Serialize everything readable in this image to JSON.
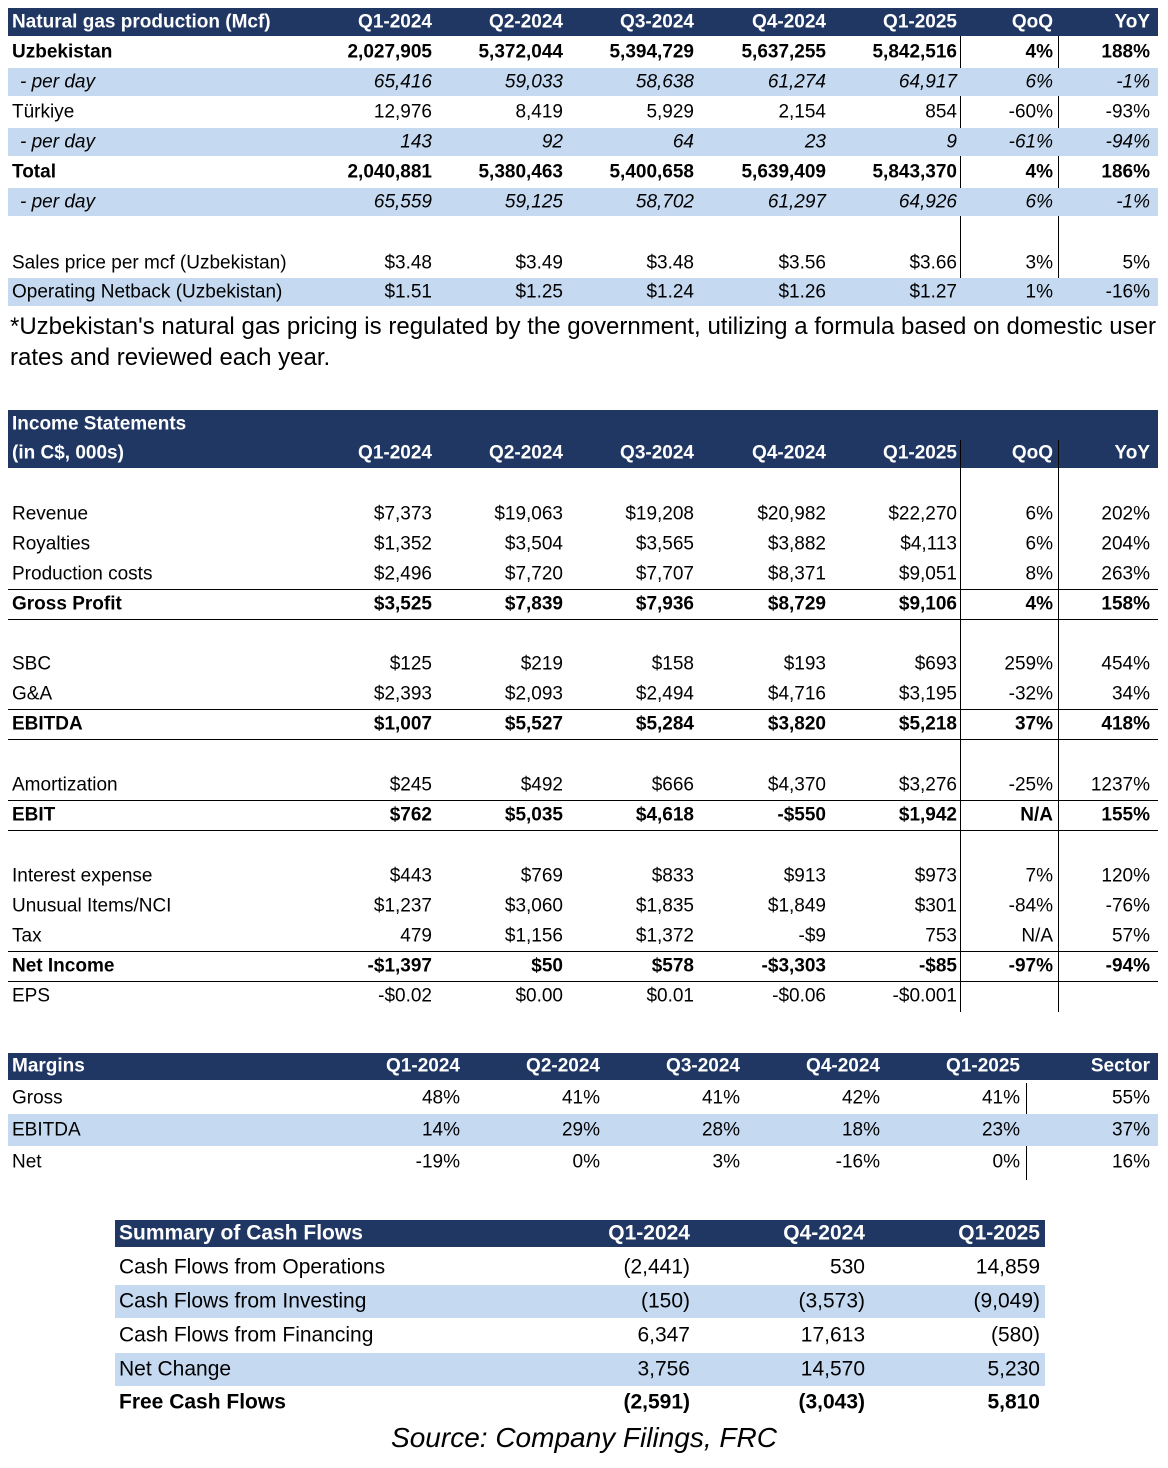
{
  "gas_production": {
    "header": [
      "Natural gas production (Mcf)",
      "Q1-2024",
      "Q2-2024",
      "Q3-2024",
      "Q4-2024",
      "Q1-2025",
      "QoQ",
      "YoY"
    ],
    "rows": [
      [
        "Uzbekistan",
        "2,027,905",
        "5,372,044",
        "5,394,729",
        "5,637,255",
        "5,842,516",
        "4%",
        "188%"
      ],
      [
        "- per day",
        "65,416",
        "59,033",
        "58,638",
        "61,274",
        "64,917",
        "6%",
        "-1%"
      ],
      [
        "Türkiye",
        "12,976",
        "8,419",
        "5,929",
        "2,154",
        "854",
        "-60%",
        "-93%"
      ],
      [
        "- per day",
        "143",
        "92",
        "64",
        "23",
        "9",
        "-61%",
        "-94%"
      ],
      [
        "Total",
        "2,040,881",
        "5,380,463",
        "5,400,658",
        "5,639,409",
        "5,843,370",
        "4%",
        "186%"
      ],
      [
        "- per day",
        "65,559",
        "59,125",
        "58,702",
        "61,297",
        "64,926",
        "6%",
        "-1%"
      ],
      [
        "Sales price per mcf (Uzbekistan)",
        "$3.48",
        "$3.49",
        "$3.48",
        "$3.56",
        "$3.66",
        "3%",
        "5%"
      ],
      [
        "Operating Netback (Uzbekistan)",
        "$1.51",
        "$1.25",
        "$1.24",
        "$1.26",
        "$1.27",
        "1%",
        "-16%"
      ]
    ]
  },
  "footnote": "*Uzbekistan's natural gas pricing is regulated by the government, utilizing a formula based on domestic user rates and reviewed each year.",
  "income_statement": {
    "title": "Income Statements",
    "header": [
      "(in C$, 000s)",
      "Q1-2024",
      "Q2-2024",
      "Q3-2024",
      "Q4-2024",
      "Q1-2025",
      "QoQ",
      "YoY"
    ],
    "rows": [
      [
        "Revenue",
        "$7,373",
        "$19,063",
        "$19,208",
        "$20,982",
        "$22,270",
        "6%",
        "202%"
      ],
      [
        "Royalties",
        "$1,352",
        "$3,504",
        "$3,565",
        "$3,882",
        "$4,113",
        "6%",
        "204%"
      ],
      [
        "Production costs",
        "$2,496",
        "$7,720",
        "$7,707",
        "$8,371",
        "$9,051",
        "8%",
        "263%"
      ],
      [
        "Gross Profit",
        "$3,525",
        "$7,839",
        "$7,936",
        "$8,729",
        "$9,106",
        "4%",
        "158%"
      ],
      [
        "SBC",
        "$125",
        "$219",
        "$158",
        "$193",
        "$693",
        "259%",
        "454%"
      ],
      [
        "G&A",
        "$2,393",
        "$2,093",
        "$2,494",
        "$4,716",
        "$3,195",
        "-32%",
        "34%"
      ],
      [
        "EBITDA",
        "$1,007",
        "$5,527",
        "$5,284",
        "$3,820",
        "$5,218",
        "37%",
        "418%"
      ],
      [
        "Amortization",
        "$245",
        "$492",
        "$666",
        "$4,370",
        "$3,276",
        "-25%",
        "1237%"
      ],
      [
        "EBIT",
        "$762",
        "$5,035",
        "$4,618",
        "-$550",
        "$1,942",
        "N/A",
        "155%"
      ],
      [
        "Interest expense",
        "$443",
        "$769",
        "$833",
        "$913",
        "$973",
        "7%",
        "120%"
      ],
      [
        "Unusual Items/NCI",
        "$1,237",
        "$3,060",
        "$1,835",
        "$1,849",
        "$301",
        "-84%",
        "-76%"
      ],
      [
        "Tax",
        "479",
        "$1,156",
        "$1,372",
        "-$9",
        "753",
        "N/A",
        "57%"
      ],
      [
        "Net Income",
        "-$1,397",
        "$50",
        "$578",
        "-$3,303",
        "-$85",
        "-97%",
        "-94%"
      ],
      [
        "EPS",
        "-$0.02",
        "$0.00",
        "$0.01",
        "-$0.06",
        "-$0.001"
      ]
    ]
  },
  "margins": {
    "header": [
      "Margins",
      "Q1-2024",
      "Q2-2024",
      "Q3-2024",
      "Q4-2024",
      "Q1-2025",
      "Sector"
    ],
    "rows": [
      [
        "Gross",
        "48%",
        "41%",
        "41%",
        "42%",
        "41%",
        "55%"
      ],
      [
        "EBITDA",
        "14%",
        "29%",
        "28%",
        "18%",
        "23%",
        "37%"
      ],
      [
        "Net",
        "-19%",
        "0%",
        "3%",
        "-16%",
        "0%",
        "16%"
      ]
    ]
  },
  "cash_flows": {
    "header": [
      "Summary of Cash Flows",
      "Q1-2024",
      "Q4-2024",
      "Q1-2025"
    ],
    "rows": [
      [
        "Cash Flows from Operations",
        "(2,441)",
        "530",
        "14,859"
      ],
      [
        "Cash Flows from Investing",
        "(150)",
        "(3,573)",
        "(9,049)"
      ],
      [
        "Cash Flows from Financing",
        "6,347",
        "17,613",
        "(580)"
      ],
      [
        "Net Change",
        "3,756",
        "14,570",
        "5,230"
      ],
      [
        "Free Cash Flows",
        "(2,591)",
        "(3,043)",
        "5,810"
      ]
    ]
  },
  "source": "Source: Company Filings, FRC"
}
